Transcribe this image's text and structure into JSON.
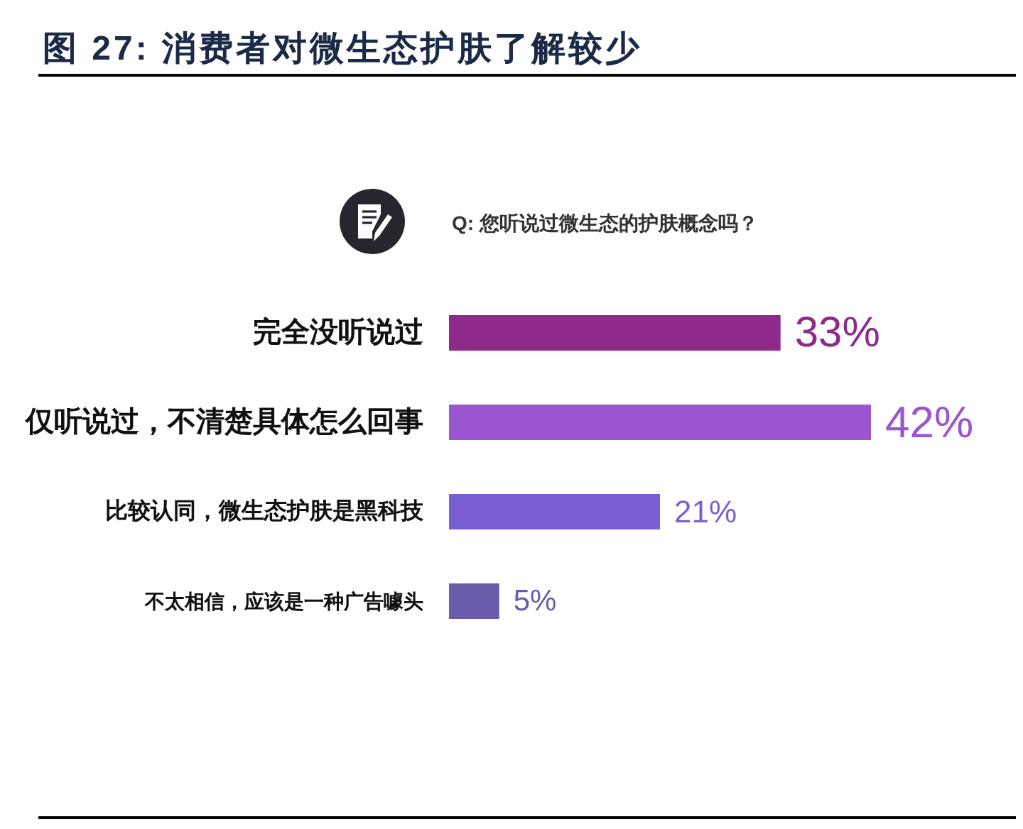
{
  "chart_data": {
    "type": "bar",
    "orientation": "horizontal",
    "title": "图 27: 消费者对微生态护肤了解较少",
    "subtitle": "Q: 您听说过微生态的护肤概念吗？",
    "categories": [
      "完全没听说过",
      "仅听说过，不清楚具体怎么回事",
      "比较认同，微生态护肤是黑科技",
      "不太相信，应该是一种广告噱头"
    ],
    "values": [
      33,
      42,
      21,
      5
    ],
    "colors": [
      "#8e2a8a",
      "#9a55cf",
      "#7a5fd3",
      "#6a5bab"
    ],
    "value_labels": [
      "33%",
      "42%",
      "21%",
      "5%"
    ]
  }
}
